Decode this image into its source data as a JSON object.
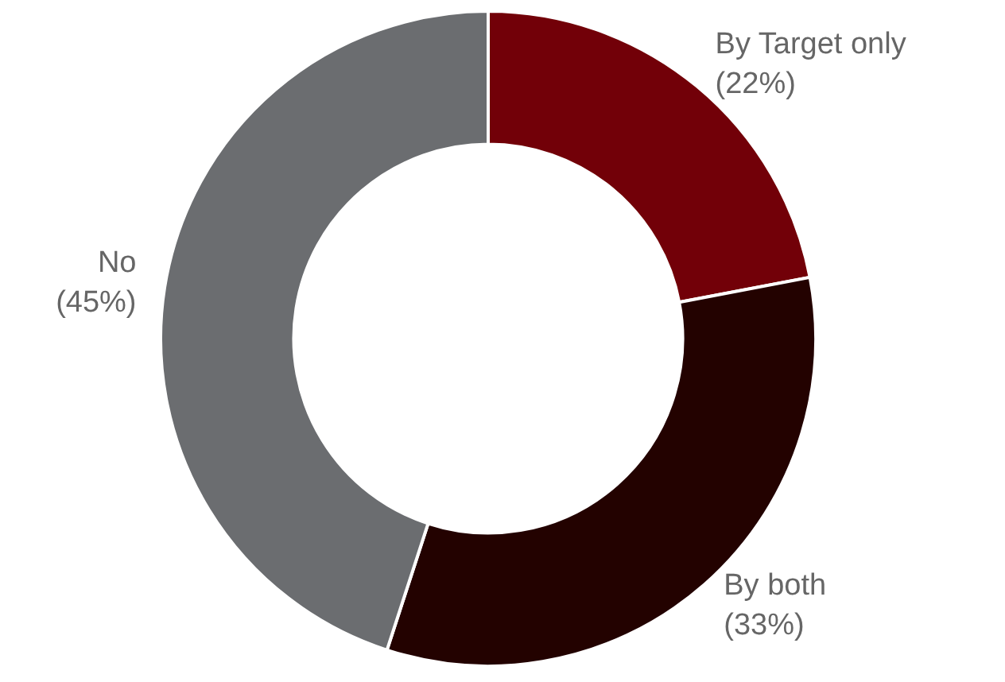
{
  "chart_data": {
    "type": "donut",
    "categories": [
      "By Target only",
      "By both",
      "No"
    ],
    "values": [
      22,
      33,
      45
    ],
    "value_labels": [
      "(22%)",
      "(33%)",
      "(45%)"
    ],
    "colors": [
      "#720008",
      "#230200",
      "#6b6d70"
    ],
    "legend": false
  }
}
